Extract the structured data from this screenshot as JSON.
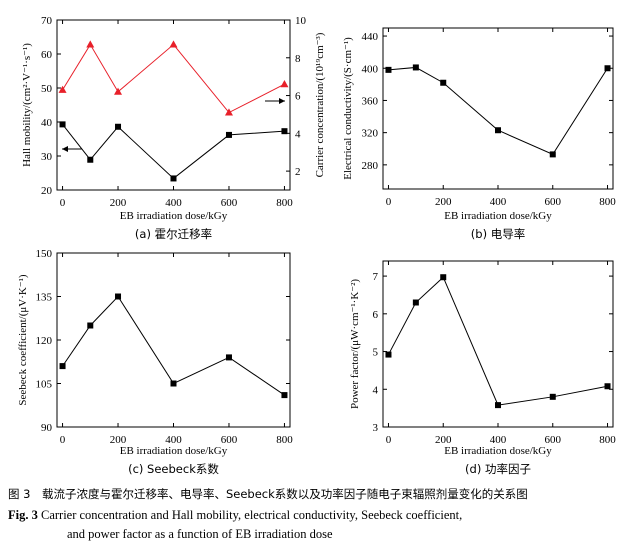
{
  "chart_data": [
    {
      "type": "line",
      "xlabel": "EB irradiation dose/kGy",
      "ylabel": "Hall mobility/(cm²·V⁻¹·s⁻¹)",
      "ylabel_right": "Carrier concentration/(10¹⁹cm⁻³)",
      "caption": "(a) 霍尔迁移率",
      "x": [
        0,
        100,
        200,
        400,
        600,
        800
      ],
      "xticks": [
        "0",
        "200",
        "400",
        "600",
        "800"
      ],
      "xlim": [
        -20,
        820
      ],
      "ylim": [
        20,
        70
      ],
      "yticks": [
        "20",
        "30",
        "40",
        "50",
        "60",
        "70"
      ],
      "ylim_right": [
        1,
        10
      ],
      "yticks_right": [
        "2",
        "4",
        "6",
        "8",
        "10"
      ],
      "series": [
        {
          "axis": "left",
          "color": "#000000",
          "marker": "square",
          "values": [
            39.3,
            28.9,
            38.6,
            23.4,
            36.2,
            37.3
          ]
        },
        {
          "axis": "right",
          "color": "#e8202a",
          "marker": "triangle",
          "values": [
            6.3,
            8.7,
            6.2,
            8.7,
            5.1,
            6.6
          ]
        }
      ]
    },
    {
      "type": "line",
      "xlabel": "EB irradiation dose/kGy",
      "ylabel": "Electrical conductivity/(S·cm⁻¹)",
      "caption": "(b) 电导率",
      "x": [
        0,
        100,
        200,
        400,
        600,
        800
      ],
      "xticks": [
        "0",
        "200",
        "400",
        "600",
        "800"
      ],
      "xlim": [
        -20,
        820
      ],
      "ylim": [
        250,
        450
      ],
      "yticks": [
        "280",
        "320",
        "360",
        "400",
        "440"
      ],
      "series": [
        {
          "axis": "left",
          "color": "#000000",
          "marker": "square",
          "values": [
            398,
            401,
            382,
            323,
            293,
            400
          ]
        }
      ]
    },
    {
      "type": "line",
      "xlabel": "EB irradiation dose/kGy",
      "ylabel": "Seebeck coefficient/(μV·K⁻¹)",
      "caption": "(c) Seebeck系数",
      "x": [
        0,
        100,
        200,
        400,
        600,
        800
      ],
      "xticks": [
        "0",
        "200",
        "400",
        "600",
        "800"
      ],
      "xlim": [
        -20,
        820
      ],
      "ylim": [
        90,
        150
      ],
      "yticks": [
        "90",
        "105",
        "120",
        "135",
        "150"
      ],
      "series": [
        {
          "axis": "left",
          "color": "#000000",
          "marker": "square",
          "values": [
            111,
            125,
            135,
            105,
            114,
            101
          ]
        }
      ]
    },
    {
      "type": "line",
      "xlabel": "EB irradiation dose/kGy",
      "ylabel": "Power factor/(μW·cm⁻¹·K⁻²)",
      "caption": "(d) 功率因子",
      "x": [
        0,
        100,
        200,
        400,
        600,
        800
      ],
      "xticks": [
        "0",
        "200",
        "400",
        "600",
        "800"
      ],
      "xlim": [
        -20,
        820
      ],
      "ylim": [
        3,
        7.4
      ],
      "yticks": [
        "3",
        "4",
        "5",
        "6",
        "7"
      ],
      "series": [
        {
          "axis": "left",
          "color": "#000000",
          "marker": "square",
          "values": [
            4.92,
            6.3,
            6.97,
            3.58,
            3.8,
            4.08
          ]
        }
      ]
    }
  ],
  "figure_caption": {
    "cn": "图 3　载流子浓度与霍尔迁移率、电导率、Seebeck系数以及功率因子随电子束辐照剂量变化的关系图",
    "en_label": "Fig. 3",
    "en_line1": "Carrier concentration and Hall mobility, electrical conductivity, Seebeck coefficient,",
    "en_line2": "and power factor as a function of EB irradiation dose"
  }
}
